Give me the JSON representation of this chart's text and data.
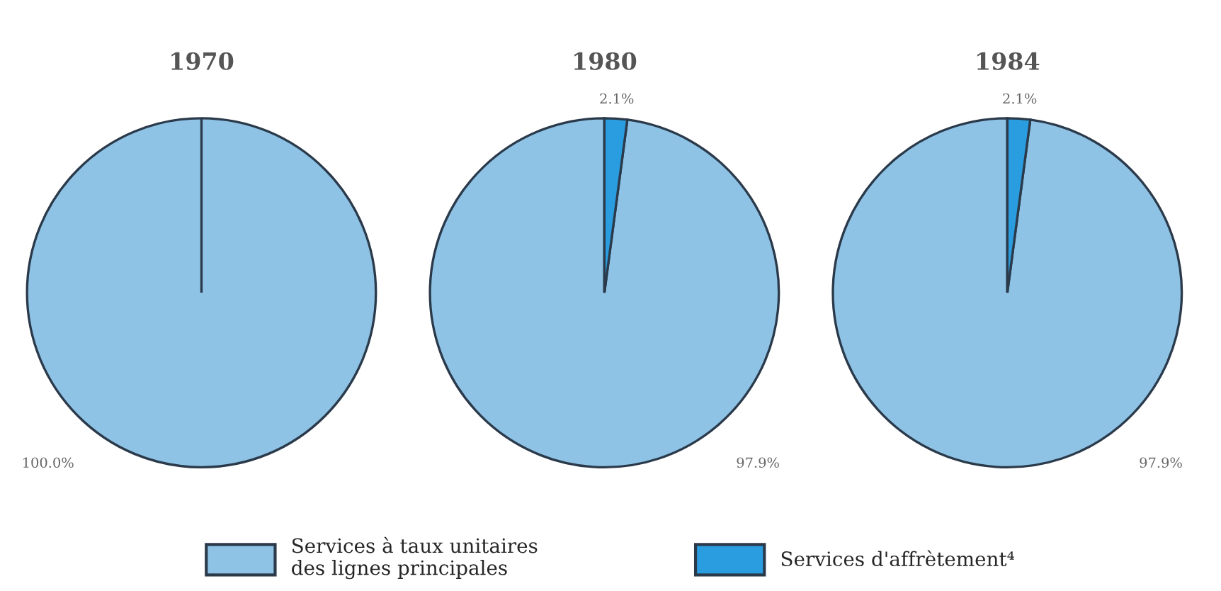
{
  "chart_data": [
    {
      "type": "pie",
      "title": "1970",
      "categories": [
        "Services à taux unitaires des lignes principales",
        "Services d'affrètement⁴"
      ],
      "values": [
        100.0,
        0.0
      ],
      "value_labels": [
        "100.0%",
        null
      ],
      "colors": [
        "#8ec3e6",
        "#2a9de0"
      ],
      "legend": "bottom"
    },
    {
      "type": "pie",
      "title": "1980",
      "values": [
        97.9,
        2.1
      ],
      "value_labels": [
        "97.9%",
        "2.1%"
      ],
      "colors": [
        "#8ec3e6",
        "#2a9de0"
      ]
    },
    {
      "type": "pie",
      "title": "1984",
      "values": [
        97.9,
        2.1
      ],
      "value_labels": [
        "97.9%",
        "2.1%"
      ],
      "colors": [
        "#8ec3e6",
        "#2a9de0"
      ]
    }
  ]
}
